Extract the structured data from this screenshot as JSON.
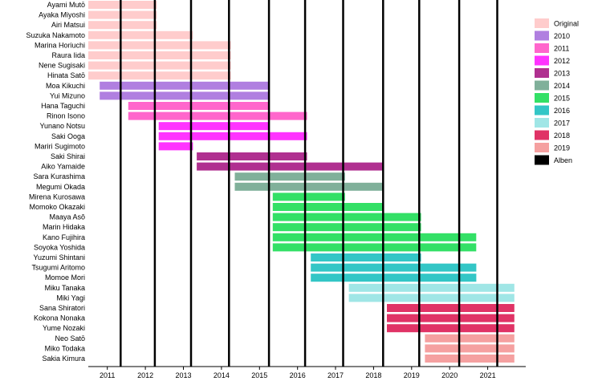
{
  "chart_data": {
    "type": "timeline",
    "title": "",
    "xlabel": "",
    "ylabel": "",
    "xlim": [
      2010.5,
      2022.0
    ],
    "x_ticks": [
      "2011",
      "2012",
      "2013",
      "2014",
      "2015",
      "2016",
      "2017",
      "2018",
      "2019",
      "2020",
      "2021"
    ],
    "x_tick_positions": [
      2011,
      2012,
      2013,
      2014,
      2015,
      2016,
      2017,
      2018,
      2019,
      2020,
      2021
    ],
    "album_lines": [
      2011.35,
      2012.25,
      2013.2,
      2014.2,
      2015.25,
      2016.2,
      2017.2,
      2018.25,
      2019.2,
      2020.25,
      2021.25
    ],
    "grid": false,
    "legend_position": "right",
    "legend": [
      {
        "label": "Original",
        "color": "#ffcccc"
      },
      {
        "label": "2010",
        "color": "#b07fe0"
      },
      {
        "label": "2011",
        "color": "#ff66cc"
      },
      {
        "label": "2012",
        "color": "#ff33ff"
      },
      {
        "label": "2013",
        "color": "#b03090"
      },
      {
        "label": "2014",
        "color": "#80b09a"
      },
      {
        "label": "2015",
        "color": "#33e066"
      },
      {
        "label": "2016",
        "color": "#33c6c6"
      },
      {
        "label": "2017",
        "color": "#a0e6e6"
      },
      {
        "label": "2018",
        "color": "#e03366"
      },
      {
        "label": "2019",
        "color": "#f5a0a0"
      },
      {
        "label": "Alben",
        "color": "#000000"
      }
    ],
    "members": [
      {
        "name": "Ayami Mutō",
        "group": "Original",
        "start": 2010.5,
        "end": 2012.3
      },
      {
        "name": "Ayaka Miyoshi",
        "group": "Original",
        "start": 2010.5,
        "end": 2012.3
      },
      {
        "name": "Airi Matsui",
        "group": "Original",
        "start": 2010.5,
        "end": 2012.3
      },
      {
        "name": "Suzuka Nakamoto",
        "group": "Original",
        "start": 2010.5,
        "end": 2013.25
      },
      {
        "name": "Marina Horiuchi",
        "group": "Original",
        "start": 2010.5,
        "end": 2014.25
      },
      {
        "name": "Raura Iida",
        "group": "Original",
        "start": 2010.5,
        "end": 2014.25
      },
      {
        "name": "Nene Sugisaki",
        "group": "Original",
        "start": 2010.5,
        "end": 2014.25
      },
      {
        "name": "Hinata Satō",
        "group": "Original",
        "start": 2010.5,
        "end": 2014.25
      },
      {
        "name": "Moa Kikuchi",
        "group": "2010",
        "start": 2010.8,
        "end": 2015.25
      },
      {
        "name": "Yui Mizuno",
        "group": "2010",
        "start": 2010.8,
        "end": 2015.25
      },
      {
        "name": "Hana Taguchi",
        "group": "2011",
        "start": 2011.55,
        "end": 2015.25
      },
      {
        "name": "Rinon Isono",
        "group": "2011",
        "start": 2011.55,
        "end": 2016.25
      },
      {
        "name": "Yunano Notsu",
        "group": "2012",
        "start": 2012.35,
        "end": 2015.25
      },
      {
        "name": "Saki Ooga",
        "group": "2012",
        "start": 2012.35,
        "end": 2016.25
      },
      {
        "name": "Mariri Sugimoto",
        "group": "2012",
        "start": 2012.35,
        "end": 2013.25
      },
      {
        "name": "Saki Shirai",
        "group": "2013",
        "start": 2013.35,
        "end": 2016.25
      },
      {
        "name": "Aiko Yamaide",
        "group": "2013",
        "start": 2013.35,
        "end": 2018.25
      },
      {
        "name": "Sara Kurashima",
        "group": "2014",
        "start": 2014.35,
        "end": 2017.25
      },
      {
        "name": "Megumi Okada",
        "group": "2014",
        "start": 2014.35,
        "end": 2018.25
      },
      {
        "name": "Mirena Kurosawa",
        "group": "2015",
        "start": 2015.35,
        "end": 2017.25
      },
      {
        "name": "Momoko Okazaki",
        "group": "2015",
        "start": 2015.35,
        "end": 2018.25
      },
      {
        "name": "Maaya Asō",
        "group": "2015",
        "start": 2015.35,
        "end": 2019.25
      },
      {
        "name": "Marin Hidaka",
        "group": "2015",
        "start": 2015.35,
        "end": 2019.25
      },
      {
        "name": "Kano Fujihira",
        "group": "2015",
        "start": 2015.35,
        "end": 2020.7
      },
      {
        "name": "Soyoka Yoshida",
        "group": "2015",
        "start": 2015.35,
        "end": 2020.7
      },
      {
        "name": "Yuzumi Shintani",
        "group": "2016",
        "start": 2016.35,
        "end": 2019.25
      },
      {
        "name": "Tsugumi Aritomo",
        "group": "2016",
        "start": 2016.35,
        "end": 2020.7
      },
      {
        "name": "Momoe Mori",
        "group": "2016",
        "start": 2016.35,
        "end": 2020.7
      },
      {
        "name": "Miku Tanaka",
        "group": "2017",
        "start": 2017.35,
        "end": 2021.7
      },
      {
        "name": "Miki Yagi",
        "group": "2017",
        "start": 2017.35,
        "end": 2021.7
      },
      {
        "name": "Sana Shiratori",
        "group": "2018",
        "start": 2018.35,
        "end": 2021.7
      },
      {
        "name": "Kokona Nonaka",
        "group": "2018",
        "start": 2018.35,
        "end": 2021.7
      },
      {
        "name": "Yume Nozaki",
        "group": "2018",
        "start": 2018.35,
        "end": 2021.7
      },
      {
        "name": "Neo Satō",
        "group": "2019",
        "start": 2019.35,
        "end": 2021.7
      },
      {
        "name": "Miko Todaka",
        "group": "2019",
        "start": 2019.35,
        "end": 2021.7
      },
      {
        "name": "Sakia Kimura",
        "group": "2019",
        "start": 2019.35,
        "end": 2021.7
      }
    ]
  }
}
